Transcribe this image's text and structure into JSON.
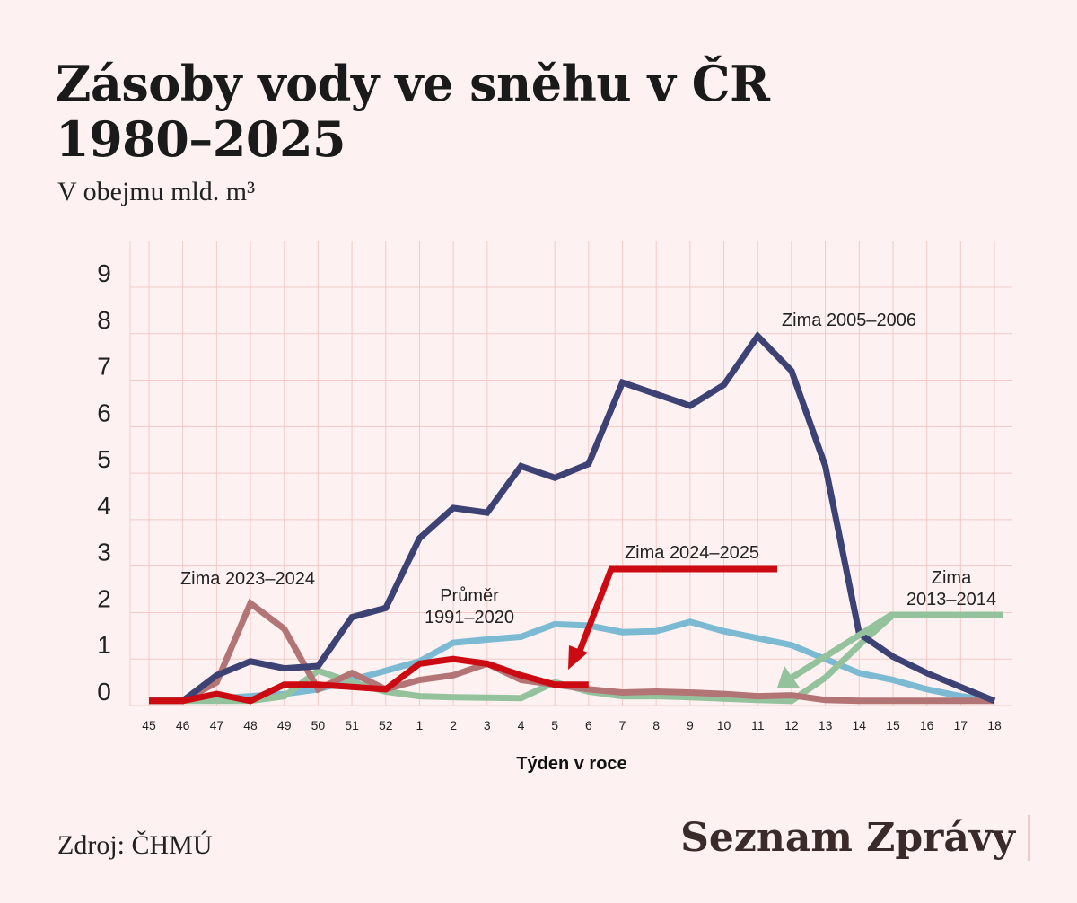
{
  "title": "Zásoby vody ve sněhu v ČR\n1980–2025",
  "subtitle": "V obejmu mld. m³",
  "source": "Zdroj: ČHMÚ",
  "brand": "Seznam Zprávy",
  "colors": {
    "background": "#fdf2f1",
    "grid": "#f2c9c6",
    "zima_2005_2006": "#3d4275",
    "prumer": "#7cbad3",
    "zima_2013_2014": "#94c29c",
    "zima_2023_2024": "#b27474",
    "zima_2024_2025": "#cc0a12"
  },
  "chart_data": {
    "type": "line",
    "xlabel": "Týden v roce",
    "ylabel": "",
    "x": [
      "45",
      "46",
      "47",
      "48",
      "49",
      "50",
      "51",
      "52",
      "1",
      "2",
      "3",
      "4",
      "5",
      "6",
      "7",
      "8",
      "9",
      "10",
      "11",
      "12",
      "13",
      "14",
      "15",
      "16",
      "17",
      "18"
    ],
    "ylim": [
      0,
      9
    ],
    "yticks": [
      0,
      1,
      2,
      3,
      4,
      5,
      6,
      7,
      8,
      9
    ],
    "grid": true,
    "series": [
      {
        "name": "Průměr\n1991–2020",
        "color": "#7cbad3",
        "values": [
          0.1,
          0.1,
          0.15,
          0.2,
          0.25,
          0.35,
          0.55,
          0.75,
          0.95,
          1.35,
          1.42,
          1.48,
          1.75,
          1.72,
          1.58,
          1.6,
          1.8,
          1.6,
          1.45,
          1.3,
          1.0,
          0.7,
          0.55,
          0.35,
          0.2,
          0.1
        ]
      },
      {
        "name": "Zima\n2013–2014",
        "color": "#94c29c",
        "values": [
          0.1,
          0.1,
          0.1,
          0.1,
          0.2,
          0.75,
          0.5,
          0.3,
          0.2,
          0.18,
          0.17,
          0.16,
          0.5,
          0.3,
          0.2,
          0.2,
          0.18,
          0.15,
          0.12,
          0.1,
          0.6,
          1.3,
          1.95,
          1.95,
          1.95,
          1.95
        ]
      },
      {
        "name": "Zima 2023–2024",
        "color": "#b27474",
        "values": [
          0.1,
          0.1,
          0.5,
          2.2,
          1.65,
          0.35,
          0.7,
          0.35,
          0.55,
          0.65,
          0.9,
          0.55,
          0.45,
          0.35,
          0.28,
          0.3,
          0.28,
          0.25,
          0.2,
          0.22,
          0.12,
          0.1,
          0.1,
          0.1,
          0.1,
          0.1
        ]
      },
      {
        "name": "Zima 2005–2006",
        "color": "#3d4275",
        "values": [
          0.1,
          0.1,
          0.65,
          0.95,
          0.8,
          0.85,
          1.9,
          2.1,
          3.6,
          4.25,
          4.15,
          5.15,
          4.9,
          5.2,
          6.95,
          6.7,
          6.45,
          6.9,
          7.95,
          7.2,
          5.15,
          1.55,
          1.05,
          0.7,
          0.4,
          0.1
        ]
      },
      {
        "name": "Zima 2024–2025",
        "color": "#cc0a12",
        "values": [
          0.1,
          0.1,
          0.25,
          0.1,
          0.45,
          0.45,
          0.4,
          0.35,
          0.9,
          1.0,
          0.9,
          0.65,
          0.45,
          0.45,
          null,
          null,
          null,
          null,
          null,
          null,
          null,
          null,
          null,
          null,
          null,
          null
        ]
      }
    ],
    "annotations": [
      {
        "text": "Zima 2005–2006",
        "series": "Zima 2005–2006"
      },
      {
        "text": "Zima 2023–2024",
        "series": "Zima 2023–2024"
      },
      {
        "text": "Průměr\n1991–2020",
        "series": "Průměr\n1991–2020"
      },
      {
        "text": "Zima 2024–2025",
        "series": "Zima 2024–2025",
        "arrow": true
      },
      {
        "text": "Zima\n2013–2014",
        "series": "Zima\n2013–2014",
        "arrow": true
      }
    ]
  }
}
